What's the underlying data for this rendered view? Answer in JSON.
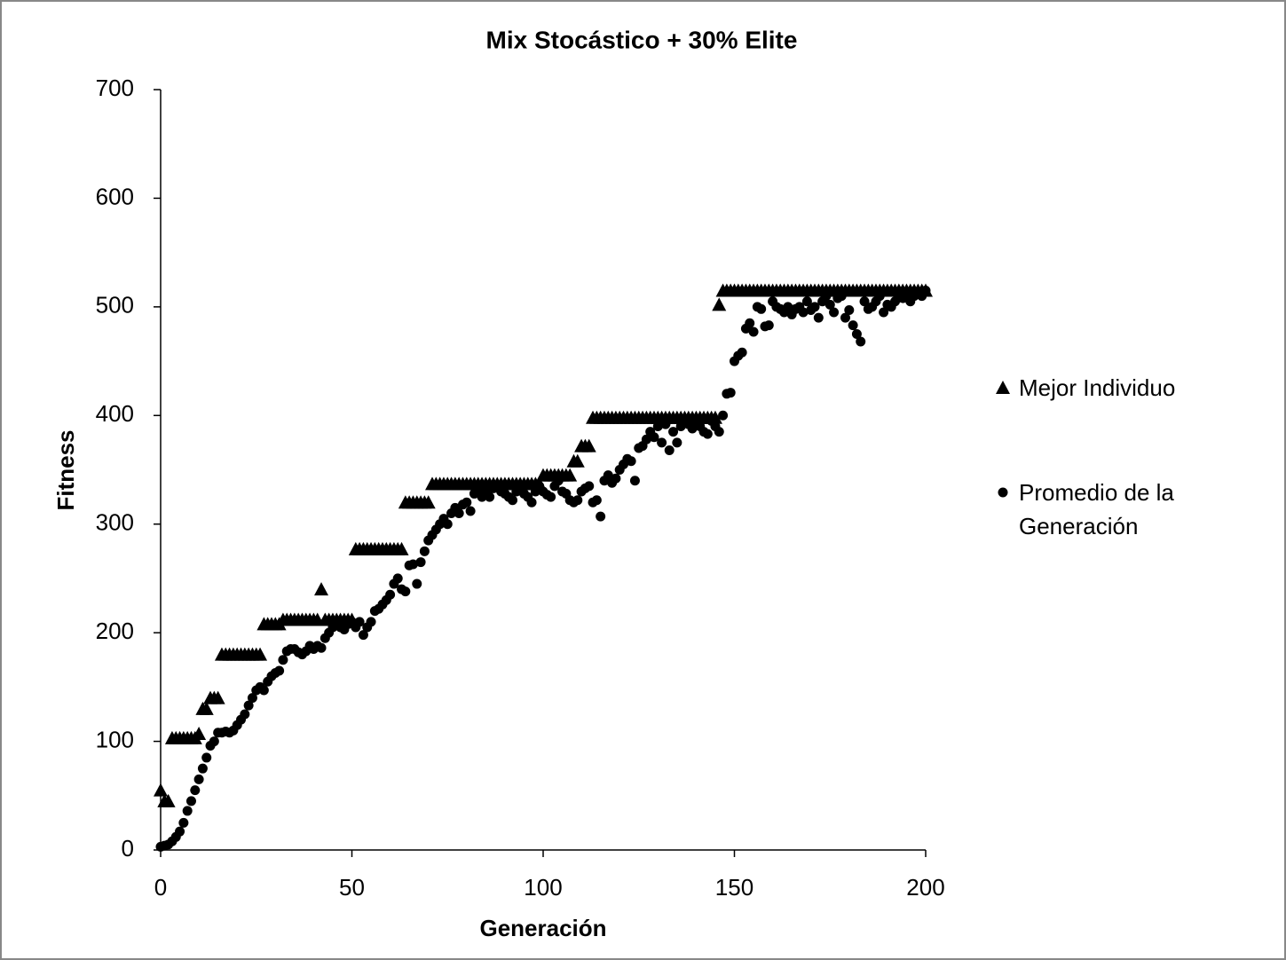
{
  "chart_data": {
    "type": "scatter",
    "title": "Mix Stocástico + 30% Elite",
    "x_label": "Generación",
    "y_label": "Fitness",
    "xlim": [
      0,
      200
    ],
    "xticks": [
      0,
      50,
      100,
      150,
      200
    ],
    "ylim": [
      0,
      700
    ],
    "yticks": [
      0,
      100,
      200,
      300,
      400,
      500,
      600,
      700
    ],
    "grid": false,
    "legend": "right",
    "x": [
      0,
      1,
      2,
      3,
      4,
      5,
      6,
      7,
      8,
      9,
      10,
      11,
      12,
      13,
      14,
      15,
      16,
      17,
      18,
      19,
      20,
      21,
      22,
      23,
      24,
      25,
      26,
      27,
      28,
      29,
      30,
      31,
      32,
      33,
      34,
      35,
      36,
      37,
      38,
      39,
      40,
      41,
      42,
      43,
      44,
      45,
      46,
      47,
      48,
      49,
      50,
      51,
      52,
      53,
      54,
      55,
      56,
      57,
      58,
      59,
      60,
      61,
      62,
      63,
      64,
      65,
      66,
      67,
      68,
      69,
      70,
      71,
      72,
      73,
      74,
      75,
      76,
      77,
      78,
      79,
      80,
      81,
      82,
      83,
      84,
      85,
      86,
      87,
      88,
      89,
      90,
      91,
      92,
      93,
      94,
      95,
      96,
      97,
      98,
      99,
      100,
      101,
      102,
      103,
      104,
      105,
      106,
      107,
      108,
      109,
      110,
      111,
      112,
      113,
      114,
      115,
      116,
      117,
      118,
      119,
      120,
      121,
      122,
      123,
      124,
      125,
      126,
      127,
      128,
      129,
      130,
      131,
      132,
      133,
      134,
      135,
      136,
      137,
      138,
      139,
      140,
      141,
      142,
      143,
      144,
      145,
      146,
      147,
      148,
      149,
      150,
      151,
      152,
      153,
      154,
      155,
      156,
      157,
      158,
      159,
      160,
      161,
      162,
      163,
      164,
      165,
      166,
      167,
      168,
      169,
      170,
      171,
      172,
      173,
      174,
      175,
      176,
      177,
      178,
      179,
      180,
      181,
      182,
      183,
      184,
      185,
      186,
      187,
      188,
      189,
      190,
      191,
      192,
      193,
      194,
      195,
      196,
      197,
      198,
      199,
      200
    ],
    "series": [
      {
        "name": "Mejor Individuo",
        "marker": "triangle",
        "color": "#000000",
        "values": [
          55,
          45,
          45,
          103,
          103,
          103,
          103,
          103,
          103,
          103,
          107,
          130,
          130,
          140,
          140,
          140,
          180,
          180,
          180,
          180,
          180,
          180,
          180,
          180,
          180,
          180,
          180,
          208,
          208,
          208,
          208,
          208,
          212,
          212,
          212,
          212,
          212,
          212,
          212,
          212,
          212,
          212,
          240,
          212,
          212,
          212,
          212,
          212,
          212,
          212,
          212,
          277,
          277,
          277,
          277,
          277,
          277,
          277,
          277,
          277,
          277,
          277,
          277,
          277,
          320,
          320,
          320,
          320,
          320,
          320,
          320,
          337,
          337,
          337,
          337,
          337,
          337,
          337,
          337,
          337,
          337,
          337,
          337,
          337,
          337,
          337,
          337,
          337,
          337,
          337,
          337,
          337,
          337,
          337,
          337,
          337,
          337,
          337,
          337,
          337,
          345,
          345,
          345,
          345,
          345,
          345,
          345,
          345,
          358,
          358,
          372,
          372,
          372,
          398,
          398,
          398,
          398,
          398,
          398,
          398,
          398,
          398,
          398,
          398,
          398,
          398,
          398,
          398,
          398,
          398,
          398,
          398,
          398,
          398,
          398,
          398,
          398,
          398,
          398,
          398,
          398,
          398,
          398,
          398,
          398,
          398,
          502,
          515,
          515,
          515,
          515,
          515,
          515,
          515,
          515,
          515,
          515,
          515,
          515,
          515,
          515,
          515,
          515,
          515,
          515,
          515,
          515,
          515,
          515,
          515,
          515,
          515,
          515,
          515,
          515,
          515,
          515,
          515,
          515,
          515,
          515,
          515,
          515,
          515,
          515,
          515,
          515,
          515,
          515,
          515,
          515,
          515,
          515,
          515,
          515,
          515,
          515,
          515,
          515,
          515,
          515
        ]
      },
      {
        "name": "Promedio de la Generación",
        "marker": "circle",
        "color": "#000000",
        "values": [
          3,
          4,
          5,
          8,
          12,
          17,
          25,
          36,
          45,
          55,
          65,
          75,
          85,
          96,
          100,
          108,
          108,
          109,
          108,
          110,
          115,
          120,
          125,
          133,
          140,
          147,
          150,
          147,
          155,
          160,
          163,
          165,
          175,
          183,
          185,
          185,
          182,
          180,
          183,
          188,
          185,
          188,
          186,
          195,
          200,
          205,
          207,
          205,
          203,
          208,
          210,
          205,
          210,
          198,
          205,
          210,
          220,
          222,
          226,
          230,
          235,
          245,
          250,
          240,
          238,
          262,
          263,
          245,
          265,
          275,
          285,
          290,
          295,
          300,
          305,
          300,
          310,
          315,
          310,
          318,
          320,
          312,
          328,
          330,
          325,
          330,
          325,
          333,
          335,
          330,
          328,
          325,
          322,
          330,
          335,
          328,
          325,
          320,
          330,
          335,
          330,
          327,
          325,
          335,
          340,
          330,
          328,
          322,
          320,
          322,
          330,
          333,
          335,
          320,
          322,
          307,
          340,
          345,
          338,
          342,
          350,
          355,
          360,
          358,
          340,
          370,
          372,
          378,
          385,
          380,
          390,
          375,
          392,
          368,
          385,
          375,
          390,
          395,
          392,
          388,
          395,
          390,
          385,
          383,
          395,
          390,
          385,
          400,
          420,
          421,
          450,
          455,
          458,
          480,
          485,
          477,
          500,
          498,
          482,
          483,
          505,
          500,
          498,
          495,
          500,
          493,
          498,
          500,
          495,
          505,
          497,
          500,
          490,
          505,
          510,
          502,
          495,
          508,
          510,
          490,
          497,
          483,
          475,
          468,
          505,
          498,
          500,
          505,
          510,
          495,
          502,
          500,
          505,
          510,
          508,
          512,
          505,
          510,
          512,
          510,
          515
        ]
      }
    ]
  }
}
